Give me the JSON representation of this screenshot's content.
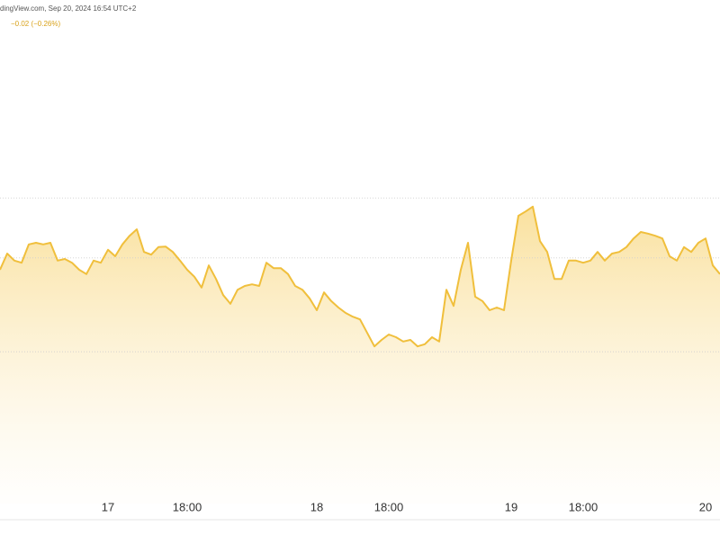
{
  "header": {
    "source": "dingView.com, Sep 20, 2024 16:54 UTC+2",
    "change": "−0.02 (−0.26%)"
  },
  "chart_data": {
    "type": "area",
    "color": "#f0bf3c",
    "categories": [
      null,
      null,
      null,
      null,
      null,
      null,
      null,
      null,
      null,
      null,
      null,
      null,
      null,
      null,
      null,
      "17",
      null,
      null,
      null,
      null,
      null,
      null,
      null,
      null,
      null,
      null,
      "18:00",
      null,
      null,
      null,
      null,
      null,
      null,
      null,
      null,
      null,
      null,
      null,
      null,
      null,
      null,
      null,
      null,
      null,
      "18",
      null,
      null,
      null,
      null,
      null,
      null,
      null,
      null,
      null,
      "18:00",
      null,
      null,
      null,
      null,
      null,
      null,
      null,
      null,
      null,
      null,
      null,
      null,
      null,
      null,
      null,
      null,
      "19",
      null,
      null,
      null,
      null,
      null,
      null,
      null,
      null,
      null,
      "18:00",
      null,
      null,
      null,
      null,
      null,
      null,
      null,
      null,
      null,
      null,
      null,
      null,
      null,
      null,
      null,
      null,
      "20",
      null,
      null
    ],
    "values": [
      7.5,
      7.53,
      7.517,
      7.513,
      7.547,
      7.55,
      7.547,
      7.55,
      7.517,
      7.52,
      7.513,
      7.5,
      7.492,
      7.517,
      7.513,
      7.537,
      7.525,
      7.547,
      7.563,
      7.575,
      7.533,
      7.528,
      7.542,
      7.543,
      7.533,
      7.517,
      7.5,
      7.487,
      7.467,
      7.508,
      7.483,
      7.453,
      7.437,
      7.463,
      7.47,
      7.473,
      7.47,
      7.513,
      7.503,
      7.503,
      7.492,
      7.47,
      7.463,
      7.447,
      7.425,
      7.458,
      7.442,
      7.43,
      7.42,
      7.413,
      7.408,
      7.383,
      7.358,
      7.37,
      7.38,
      7.375,
      7.367,
      7.37,
      7.358,
      7.362,
      7.375,
      7.367,
      7.463,
      7.433,
      7.5,
      7.55,
      7.45,
      7.442,
      7.425,
      7.43,
      7.425,
      7.517,
      7.6,
      7.608,
      7.617,
      7.553,
      7.533,
      7.483,
      7.483,
      7.517,
      7.517,
      7.513,
      7.517,
      7.533,
      7.517,
      7.53,
      7.533,
      7.542,
      7.558,
      7.57,
      7.567,
      7.563,
      7.558,
      7.525,
      7.517,
      7.542,
      7.533,
      7.55,
      7.558,
      7.508,
      7.492
    ],
    "ylim": [
      7,
      8
    ],
    "reference_lines": [
      7.633,
      7.522,
      7.348
    ]
  }
}
